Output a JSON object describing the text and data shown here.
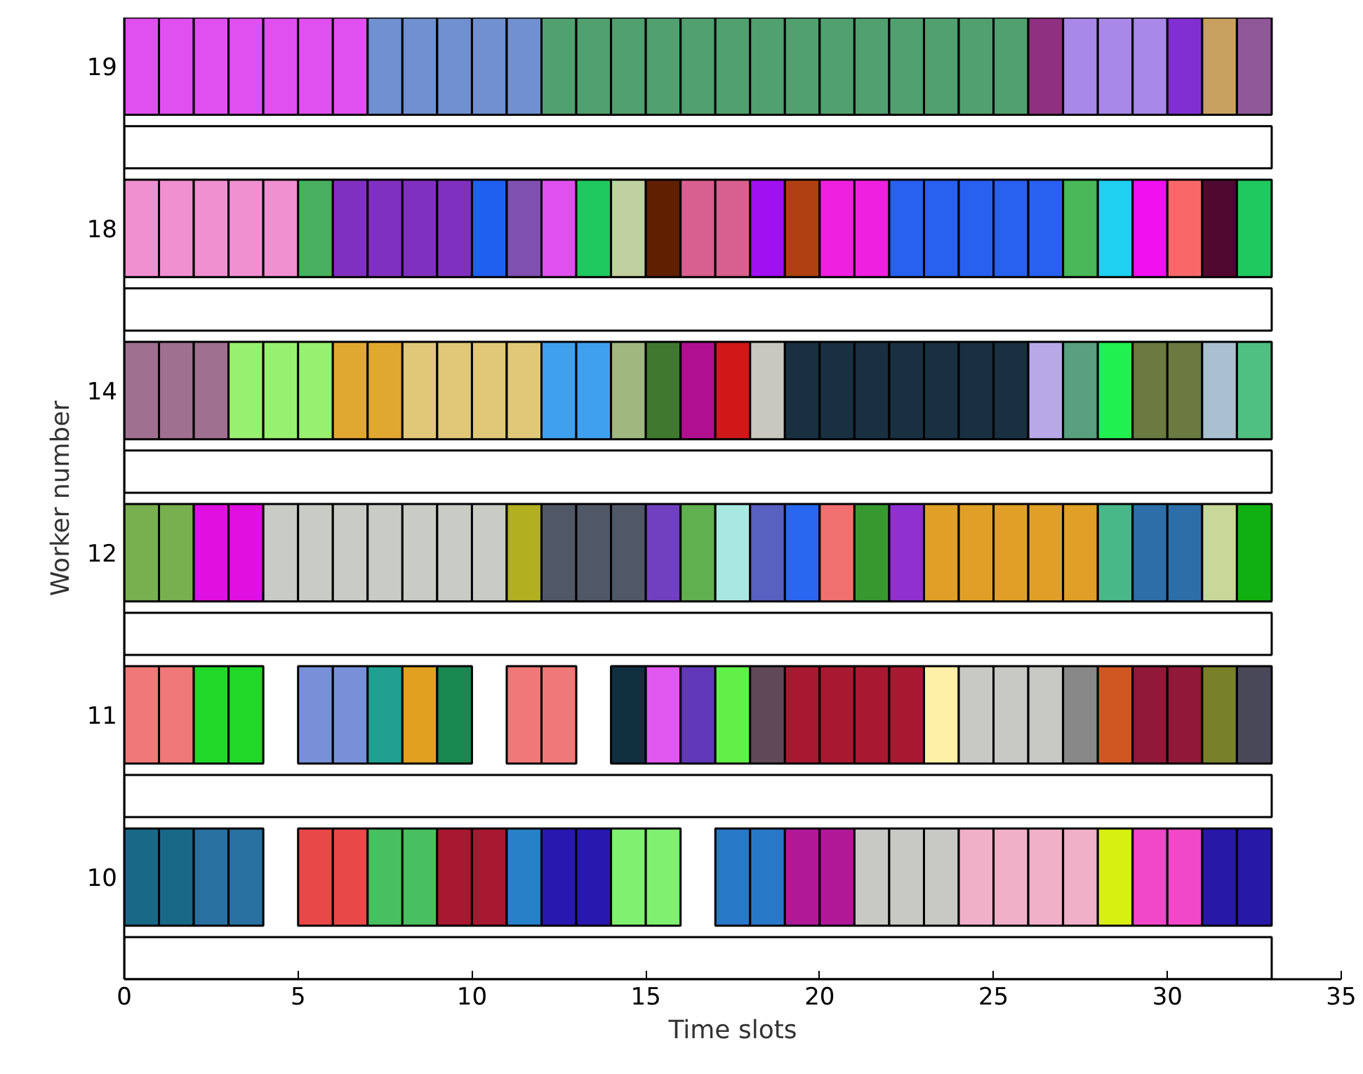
{
  "chart_data": {
    "type": "bar",
    "orientation": "horizontal",
    "xlabel": "Time slots",
    "ylabel": "Worker number",
    "categories": [
      "19",
      null,
      "18",
      null,
      "14",
      null,
      "12",
      null,
      "11",
      null,
      "10",
      null
    ],
    "xlim": [
      0,
      35
    ],
    "xticks": [
      0,
      5,
      10,
      15,
      20,
      25,
      30,
      35
    ],
    "series": [
      {
        "values": [
          1,
          33,
          1,
          33,
          1,
          33,
          1,
          33,
          1,
          33,
          1,
          33
        ],
        "base": [
          0,
          0,
          0,
          0,
          0,
          0,
          0,
          0,
          0,
          0,
          0,
          0
        ],
        "colors": [
          "#e050f0",
          "#ffffff",
          "#f090d0",
          "#ffffff",
          "#a07090",
          "#ffffff",
          "#78b050",
          "#ffffff",
          "#f07878",
          "#ffffff",
          "#1a6888",
          "#ffffff"
        ]
      },
      {
        "values": [
          1,
          null,
          1,
          null,
          1,
          null,
          1,
          null,
          1,
          null,
          1,
          null
        ],
        "base": [
          1,
          null,
          1,
          null,
          1,
          null,
          1,
          null,
          1,
          null,
          1,
          null
        ],
        "colors": [
          "#e050f0",
          null,
          "#f090d0",
          null,
          "#a07090",
          null,
          "#78b050",
          null,
          "#f07878",
          null,
          "#1a6888",
          null
        ]
      },
      {
        "values": [
          1,
          null,
          1,
          null,
          1,
          null,
          1,
          null,
          1,
          null,
          1,
          null
        ],
        "base": [
          2,
          null,
          2,
          null,
          2,
          null,
          2,
          null,
          2,
          null,
          2,
          null
        ],
        "colors": [
          "#e050f0",
          null,
          "#f090d0",
          null,
          "#a07090",
          null,
          "#e010e0",
          null,
          "#20d828",
          null,
          "#2870a0",
          null
        ]
      },
      {
        "values": [
          1,
          null,
          1,
          null,
          1,
          null,
          1,
          null,
          1,
          null,
          1,
          null
        ],
        "base": [
          3,
          null,
          3,
          null,
          3,
          null,
          3,
          null,
          3,
          null,
          3,
          null
        ],
        "colors": [
          "#e050f0",
          null,
          "#f090d0",
          null,
          "#98f070",
          null,
          "#e010e0",
          null,
          "#20d828",
          null,
          "#2870a0",
          null
        ]
      },
      {
        "values": [
          1,
          null,
          1,
          null,
          1,
          null,
          1,
          null,
          null,
          null,
          null,
          null
        ],
        "base": [
          4,
          null,
          4,
          null,
          4,
          null,
          4,
          null,
          null,
          null,
          null,
          null
        ],
        "colors": [
          "#e050f0",
          null,
          "#f090d0",
          null,
          "#98f070",
          null,
          "#c8ccc4",
          null,
          null,
          null,
          null,
          null
        ]
      },
      {
        "values": [
          1,
          null,
          1,
          null,
          1,
          null,
          1,
          null,
          1,
          null,
          1,
          null
        ],
        "base": [
          5,
          null,
          5,
          null,
          5,
          null,
          5,
          null,
          5,
          null,
          5,
          null
        ],
        "colors": [
          "#e050f0",
          null,
          "#48b060",
          null,
          "#98f070",
          null,
          "#c8ccc4",
          null,
          "#7890d8",
          null,
          "#e84848",
          null
        ]
      },
      {
        "values": [
          1,
          null,
          1,
          null,
          1,
          null,
          1,
          null,
          1,
          null,
          1,
          null
        ],
        "base": [
          6,
          null,
          6,
          null,
          6,
          null,
          6,
          null,
          6,
          null,
          6,
          null
        ],
        "colors": [
          "#e050f0",
          null,
          "#8030c0",
          null,
          "#e0a830",
          null,
          "#c8ccc4",
          null,
          "#7890d8",
          null,
          "#e84848",
          null
        ]
      },
      {
        "values": [
          1,
          null,
          1,
          null,
          1,
          null,
          1,
          null,
          1,
          null,
          1,
          null
        ],
        "base": [
          7,
          null,
          7,
          null,
          7,
          null,
          7,
          null,
          7,
          null,
          7,
          null
        ],
        "colors": [
          "#7090d0",
          null,
          "#8030c0",
          null,
          "#e0a830",
          null,
          "#c8ccc4",
          null,
          "#20a090",
          null,
          "#48c060",
          null
        ]
      },
      {
        "values": [
          1,
          null,
          1,
          null,
          1,
          null,
          1,
          null,
          1,
          null,
          1,
          null
        ],
        "base": [
          8,
          null,
          8,
          null,
          8,
          null,
          8,
          null,
          8,
          null,
          8,
          null
        ],
        "colors": [
          "#7090d0",
          null,
          "#8030c0",
          null,
          "#e0c878",
          null,
          "#c8ccc4",
          null,
          "#e0a020",
          null,
          "#48c060",
          null
        ]
      },
      {
        "values": [
          1,
          null,
          1,
          null,
          1,
          null,
          1,
          null,
          1,
          null,
          1,
          null
        ],
        "base": [
          9,
          null,
          9,
          null,
          9,
          null,
          9,
          null,
          9,
          null,
          9,
          null
        ],
        "colors": [
          "#7090d0",
          null,
          "#8030c0",
          null,
          "#e0c878",
          null,
          "#c8ccc4",
          null,
          "#188850",
          null,
          "#a81830",
          null
        ]
      },
      {
        "values": [
          1,
          null,
          1,
          null,
          1,
          null,
          1,
          null,
          null,
          null,
          1,
          null
        ],
        "base": [
          10,
          null,
          10,
          null,
          10,
          null,
          10,
          null,
          null,
          null,
          10,
          null
        ],
        "colors": [
          "#7090d0",
          null,
          "#2060f0",
          null,
          "#e0c878",
          null,
          "#c8ccc4",
          null,
          null,
          null,
          "#a81830",
          null
        ]
      },
      {
        "values": [
          1,
          null,
          1,
          null,
          1,
          null,
          1,
          null,
          1,
          null,
          1,
          null
        ],
        "base": [
          11,
          null,
          11,
          null,
          11,
          null,
          11,
          null,
          11,
          null,
          11,
          null
        ],
        "colors": [
          "#7090d0",
          null,
          "#8050b0",
          null,
          "#e0c878",
          null,
          "#b0b020",
          null,
          "#f07878",
          null,
          "#2880c8",
          null
        ]
      },
      {
        "values": [
          1,
          null,
          1,
          null,
          1,
          null,
          1,
          null,
          1,
          null,
          1,
          null
        ],
        "base": [
          12,
          null,
          12,
          null,
          12,
          null,
          12,
          null,
          12,
          null,
          12,
          null
        ],
        "colors": [
          "#50a070",
          null,
          "#e050f0",
          null,
          "#40a0f0",
          null,
          "#505868",
          null,
          "#f07878",
          null,
          "#2818b0",
          null
        ]
      },
      {
        "values": [
          1,
          null,
          1,
          null,
          1,
          null,
          1,
          null,
          null,
          null,
          1,
          null
        ],
        "base": [
          13,
          null,
          13,
          null,
          13,
          null,
          13,
          null,
          null,
          null,
          13,
          null
        ],
        "colors": [
          "#50a070",
          null,
          "#20c860",
          null,
          "#40a0f0",
          null,
          "#505868",
          null,
          null,
          null,
          "#2818b0",
          null
        ]
      },
      {
        "values": [
          1,
          null,
          1,
          null,
          1,
          null,
          1,
          null,
          1,
          null,
          1,
          null
        ],
        "base": [
          14,
          null,
          14,
          null,
          14,
          null,
          14,
          null,
          14,
          null,
          14,
          null
        ],
        "colors": [
          "#50a070",
          null,
          "#c0d0a0",
          null,
          "#a0b880",
          null,
          "#505868",
          null,
          "#103040",
          null,
          "#80f070",
          null
        ]
      },
      {
        "values": [
          1,
          null,
          1,
          null,
          1,
          null,
          1,
          null,
          1,
          null,
          1,
          null
        ],
        "base": [
          15,
          null,
          15,
          null,
          15,
          null,
          15,
          null,
          15,
          null,
          15,
          null
        ],
        "colors": [
          "#50a070",
          null,
          "#602000",
          null,
          "#407830",
          null,
          "#7040c0",
          null,
          "#e058f0",
          null,
          "#80f070",
          null
        ]
      },
      {
        "values": [
          1,
          null,
          1,
          null,
          1,
          null,
          1,
          null,
          1,
          null,
          null,
          null
        ],
        "base": [
          16,
          null,
          16,
          null,
          16,
          null,
          16,
          null,
          16,
          null,
          null,
          null
        ],
        "colors": [
          "#50a070",
          null,
          "#d86090",
          null,
          "#b01090",
          null,
          "#60b050",
          null,
          "#6038b8",
          null,
          null,
          null
        ]
      },
      {
        "values": [
          1,
          null,
          1,
          null,
          1,
          null,
          1,
          null,
          1,
          null,
          1,
          null
        ],
        "base": [
          17,
          null,
          17,
          null,
          17,
          null,
          17,
          null,
          17,
          null,
          17,
          null
        ],
        "colors": [
          "#50a070",
          null,
          "#d86090",
          null,
          "#d01818",
          null,
          "#a8e8e0",
          null,
          "#60f048",
          null,
          "#2878c8",
          null
        ]
      },
      {
        "values": [
          1,
          null,
          1,
          null,
          1,
          null,
          1,
          null,
          1,
          null,
          1,
          null
        ],
        "base": [
          18,
          null,
          18,
          null,
          18,
          null,
          18,
          null,
          18,
          null,
          18,
          null
        ],
        "colors": [
          "#50a070",
          null,
          "#a010f0",
          null,
          "#c8c8c0",
          null,
          "#5860c0",
          null,
          "#604858",
          null,
          "#2878c8",
          null
        ]
      },
      {
        "values": [
          1,
          null,
          1,
          null,
          1,
          null,
          1,
          null,
          1,
          null,
          1,
          null
        ],
        "base": [
          19,
          null,
          19,
          null,
          19,
          null,
          19,
          null,
          19,
          null,
          19,
          null
        ],
        "colors": [
          "#50a070",
          null,
          "#b04010",
          null,
          "#183040",
          null,
          "#2868f0",
          null,
          "#a81830",
          null,
          "#b01898",
          null
        ]
      },
      {
        "values": [
          1,
          null,
          1,
          null,
          1,
          null,
          1,
          null,
          1,
          null,
          1,
          null
        ],
        "base": [
          20,
          null,
          20,
          null,
          20,
          null,
          20,
          null,
          20,
          null,
          20,
          null
        ],
        "colors": [
          "#50a070",
          null,
          "#f020e0",
          null,
          "#183040",
          null,
          "#f07070",
          null,
          "#a81830",
          null,
          "#b01898",
          null
        ]
      },
      {
        "values": [
          1,
          null,
          1,
          null,
          1,
          null,
          1,
          null,
          1,
          null,
          1,
          null
        ],
        "base": [
          21,
          null,
          21,
          null,
          21,
          null,
          21,
          null,
          21,
          null,
          21,
          null
        ],
        "colors": [
          "#50a070",
          null,
          "#f020e0",
          null,
          "#183040",
          null,
          "#389830",
          null,
          "#a81830",
          null,
          "#c8c8c4",
          null
        ]
      },
      {
        "values": [
          1,
          null,
          1,
          null,
          1,
          null,
          1,
          null,
          1,
          null,
          1,
          null
        ],
        "base": [
          22,
          null,
          22,
          null,
          22,
          null,
          22,
          null,
          22,
          null,
          22,
          null
        ],
        "colors": [
          "#50a070",
          null,
          "#2860f0",
          null,
          "#183040",
          null,
          "#9030d0",
          null,
          "#a81830",
          null,
          "#c8c8c4",
          null
        ]
      },
      {
        "values": [
          1,
          null,
          1,
          null,
          1,
          null,
          1,
          null,
          1,
          null,
          1,
          null
        ],
        "base": [
          23,
          null,
          23,
          null,
          23,
          null,
          23,
          null,
          23,
          null,
          23,
          null
        ],
        "colors": [
          "#50a070",
          null,
          "#2860f0",
          null,
          "#183040",
          null,
          "#e0a028",
          null,
          "#fff0a8",
          null,
          "#c8c8c4",
          null
        ]
      },
      {
        "values": [
          1,
          null,
          1,
          null,
          1,
          null,
          1,
          null,
          1,
          null,
          1,
          null
        ],
        "base": [
          24,
          null,
          24,
          null,
          24,
          null,
          24,
          null,
          24,
          null,
          24,
          null
        ],
        "colors": [
          "#50a070",
          null,
          "#2860f0",
          null,
          "#183040",
          null,
          "#e0a028",
          null,
          "#c8c8c4",
          null,
          "#f0b0c8",
          null
        ]
      },
      {
        "values": [
          1,
          null,
          1,
          null,
          1,
          null,
          1,
          null,
          1,
          null,
          1,
          null
        ],
        "base": [
          25,
          null,
          25,
          null,
          25,
          null,
          25,
          null,
          25,
          null,
          25,
          null
        ],
        "colors": [
          "#50a070",
          null,
          "#2860f0",
          null,
          "#183040",
          null,
          "#e0a028",
          null,
          "#c8c8c4",
          null,
          "#f0b0c8",
          null
        ]
      },
      {
        "values": [
          1,
          null,
          1,
          null,
          1,
          null,
          1,
          null,
          1,
          null,
          1,
          null
        ],
        "base": [
          26,
          null,
          26,
          null,
          26,
          null,
          26,
          null,
          26,
          null,
          26,
          null
        ],
        "colors": [
          "#903080",
          null,
          "#2860f0",
          null,
          "#b8a8e8",
          null,
          "#e0a028",
          null,
          "#c8c8c4",
          null,
          "#f0b0c8",
          null
        ]
      },
      {
        "values": [
          1,
          null,
          1,
          null,
          1,
          null,
          1,
          null,
          1,
          null,
          1,
          null
        ],
        "base": [
          27,
          null,
          27,
          null,
          27,
          null,
          27,
          null,
          27,
          null,
          27,
          null
        ],
        "colors": [
          "#a888e8",
          null,
          "#48b858",
          null,
          "#58a080",
          null,
          "#e0a028",
          null,
          "#888888",
          null,
          "#f0b0c8",
          null
        ]
      },
      {
        "values": [
          1,
          null,
          1,
          null,
          1,
          null,
          1,
          null,
          1,
          null,
          1,
          null
        ],
        "base": [
          28,
          null,
          28,
          null,
          28,
          null,
          28,
          null,
          28,
          null,
          28,
          null
        ],
        "colors": [
          "#a888e8",
          null,
          "#20d0f0",
          null,
          "#20f050",
          null,
          "#48b888",
          null,
          "#d05820",
          null,
          "#d8f010",
          null
        ]
      },
      {
        "values": [
          1,
          null,
          1,
          null,
          1,
          null,
          1,
          null,
          1,
          null,
          1,
          null
        ],
        "base": [
          29,
          null,
          29,
          null,
          29,
          null,
          29,
          null,
          29,
          null,
          29,
          null
        ],
        "colors": [
          "#a888e8",
          null,
          "#f010f0",
          null,
          "#6a7a40",
          null,
          "#2e6ea8",
          null,
          "#901838",
          null,
          "#f048c8",
          null
        ]
      },
      {
        "values": [
          1,
          null,
          1,
          null,
          1,
          null,
          1,
          null,
          1,
          null,
          1,
          null
        ],
        "base": [
          30,
          null,
          30,
          null,
          30,
          null,
          30,
          null,
          30,
          null,
          30,
          null
        ],
        "colors": [
          "#8030d0",
          null,
          "#f86868",
          null,
          "#6a7a40",
          null,
          "#2e6ea8",
          null,
          "#901838",
          null,
          "#f048c8",
          null
        ]
      },
      {
        "values": [
          1,
          null,
          1,
          null,
          1,
          null,
          1,
          null,
          1,
          null,
          1,
          null
        ],
        "base": [
          31,
          null,
          31,
          null,
          31,
          null,
          31,
          null,
          31,
          null,
          31,
          null
        ],
        "colors": [
          "#c8a060",
          null,
          "#500830",
          null,
          "#a8c0d0",
          null,
          "#c8d898",
          null,
          "#788028",
          null,
          "#2818a8",
          null
        ]
      },
      {
        "values": [
          1,
          null,
          1,
          null,
          1,
          null,
          1,
          null,
          1,
          null,
          1,
          null
        ],
        "base": [
          32,
          null,
          32,
          null,
          32,
          null,
          32,
          null,
          32,
          null,
          32,
          null
        ],
        "colors": [
          "#905898",
          null,
          "#20c860",
          null,
          "#50c080",
          null,
          "#10b010",
          null,
          "#484858",
          null,
          "#2818a8",
          null
        ]
      }
    ]
  }
}
